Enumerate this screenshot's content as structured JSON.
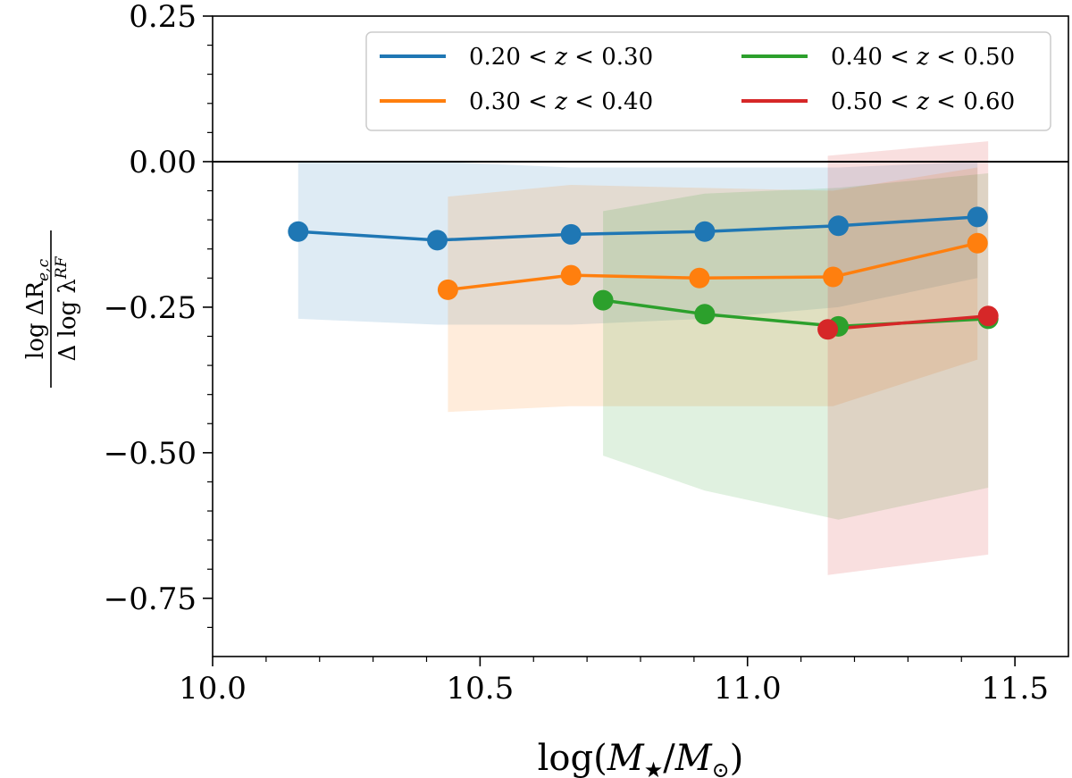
{
  "chart_data": {
    "type": "line",
    "title": "",
    "xlabel": {
      "pre": "log(",
      "m1": "M",
      "star": "★",
      "slash": "/",
      "m2": "M",
      "sun": "⊙",
      "post": ")"
    },
    "ylabel": {
      "num": "log ΔR",
      "num_sub": "e,c",
      "den": "Δ log λ",
      "den_sup": "RF"
    },
    "xlim": [
      10.0,
      11.6
    ],
    "ylim": [
      -0.85,
      0.25
    ],
    "xticks": [
      10.0,
      10.5,
      11.0,
      11.5
    ],
    "xtick_labels": [
      "10.0",
      "10.5",
      "11.0",
      "11.5"
    ],
    "yticks": [
      0.25,
      0.0,
      -0.25,
      -0.5,
      -0.75
    ],
    "ytick_labels": [
      "0.25",
      "0.00",
      "−0.25",
      "−0.50",
      "−0.75"
    ],
    "grid": false,
    "reference_line_y": 0.0,
    "legend": {
      "placement": "top-right",
      "columns": 2
    },
    "series": [
      {
        "name": "0.20 < z < 0.30",
        "label": {
          "lo": "0.20",
          "lt1": "<",
          "var": "z",
          "lt2": "<",
          "hi": "0.30"
        },
        "color": "#1f77b4",
        "x": [
          10.16,
          10.42,
          10.67,
          10.92,
          11.17,
          11.43
        ],
        "y": [
          -0.12,
          -0.135,
          -0.125,
          -0.12,
          -0.11,
          -0.095
        ],
        "band_upper": [
          0.0,
          0.0,
          -0.01,
          -0.01,
          -0.01,
          0.0
        ],
        "band_lower": [
          -0.27,
          -0.28,
          -0.28,
          -0.27,
          -0.25,
          -0.2
        ]
      },
      {
        "name": "0.30 < z < 0.40",
        "label": {
          "lo": "0.30",
          "lt1": "<",
          "var": "z",
          "lt2": "<",
          "hi": "0.40"
        },
        "color": "#ff7f0e",
        "x": [
          10.44,
          10.67,
          10.91,
          11.16,
          11.43
        ],
        "y": [
          -0.22,
          -0.195,
          -0.2,
          -0.198,
          -0.14
        ],
        "band_upper": [
          -0.06,
          -0.04,
          -0.045,
          -0.05,
          -0.01
        ],
        "band_lower": [
          -0.43,
          -0.42,
          -0.42,
          -0.42,
          -0.34
        ]
      },
      {
        "name": "0.40 < z < 0.50",
        "label": {
          "lo": "0.40",
          "lt1": "<",
          "var": "z",
          "lt2": "<",
          "hi": "0.50"
        },
        "color": "#2ca02c",
        "x": [
          10.73,
          10.92,
          11.17,
          11.45
        ],
        "y": [
          -0.238,
          -0.262,
          -0.283,
          -0.27
        ],
        "band_upper": [
          -0.085,
          -0.055,
          -0.045,
          -0.02
        ],
        "band_lower": [
          -0.505,
          -0.565,
          -0.615,
          -0.56
        ]
      },
      {
        "name": "0.50 < z < 0.60",
        "label": {
          "lo": "0.50",
          "lt1": "<",
          "var": "z",
          "lt2": "<",
          "hi": "0.60"
        },
        "color": "#d62728",
        "x": [
          11.15,
          11.45
        ],
        "y": [
          -0.288,
          -0.265
        ],
        "band_upper": [
          0.01,
          0.035
        ],
        "band_lower": [
          -0.71,
          -0.675
        ]
      }
    ]
  }
}
